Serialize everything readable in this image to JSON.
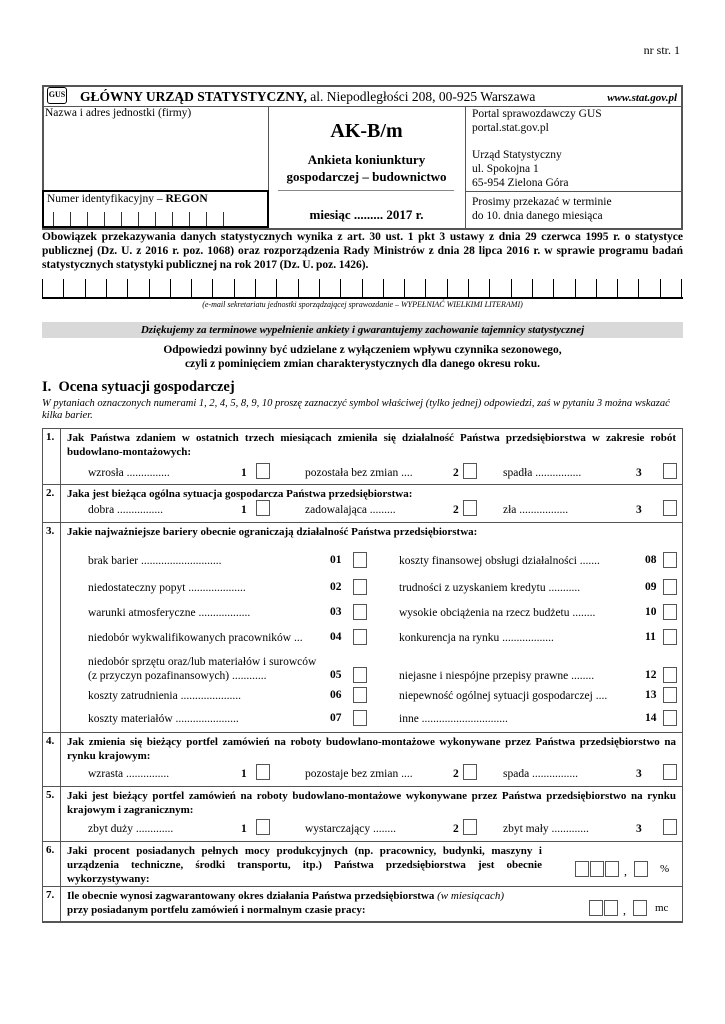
{
  "page_number": "nr str. 1",
  "header": {
    "logo_text": "GUS",
    "org_name": "GŁÓWNY URZĄD STATYSTYCZNY,",
    "address": " al. Niepodległości 208, 00-925 Warszawa",
    "website": "www.stat.gov.pl"
  },
  "unit_label": "Nazwa i adres jednostki (firmy)",
  "regon_label": "Numer identyfikacyjny – ",
  "regon_bold": "REGON",
  "form_code": "AK-B/m",
  "form_title_1": "Ankieta koniunktury",
  "form_title_2": "gospodarczej – budownictwo",
  "month_label": "miesiąc ......... ",
  "year": "2017 r.",
  "portal": [
    "Portal sprawozdawczy GUS",
    "portal.stat.gov.pl"
  ],
  "office": [
    "Urząd Statystyczny",
    "ul. Spokojna 1",
    "65-954 Zielona Góra"
  ],
  "deadline": [
    "Prosimy przekazać w terminie",
    "do 10. dnia danego miesiąca"
  ],
  "legal_text": "Obowiązek przekazywania danych statystycznych wynika z art. 30 ust. 1 pkt 3 ustawy z dnia 29 czerwca 1995 r. o statystyce publicznej (Dz. U. z 2016 r. poz. 1068) oraz rozporządzenia Rady Ministrów z dnia 28 lipca 2016 r. w sprawie programu badań statystycznych statystyki publicznej na rok 2017 (Dz. U. poz. 1426).",
  "email_caption": "(e-mail sekretariatu jednostki sporządzającej sprawozdanie – WYPEŁNIAĆ WIELKIMI LITERAMI)",
  "thanks": "Dziękujemy za terminowe wypełnienie ankiety i gwarantujemy zachowanie tajemnicy statystycznej",
  "note_1": "Odpowiedzi powinny być udzielane z wyłączeniem wpływu czynnika sezonowego,",
  "note_2": "czyli z pominięciem zmian charakterystycznych dla danego okresu roku.",
  "section_title": "I.  Ocena sytuacji gospodarczej",
  "instruction": "W pytaniach oznaczonych numerami 1, 2, 4, 5, 8, 9, 10 proszę zaznaczyć symbol właściwej (tylko jednej) odpowiedzi, zaś w pytaniu 3 można wskazać kilka barier.",
  "questions": [
    {
      "num": "1.",
      "text": "Jak Państwa zdaniem w ostatnich trzech miesiącach zmieniła się działalność Państwa przedsiębiorstwa w zakresie robót budowlano-montażowych:",
      "options": [
        {
          "label": "wzrosła ...............",
          "code": "1"
        },
        {
          "label": "pozostała bez zmian ....",
          "code": "2"
        },
        {
          "label": "spadła ................",
          "code": "3"
        }
      ]
    },
    {
      "num": "2.",
      "text": "Jaka jest bieżąca ogólna sytuacja gospodarcza Państwa przedsiębiorstwa:",
      "options": [
        {
          "label": "dobra ................",
          "code": "1"
        },
        {
          "label": "zadowalająca .........",
          "code": "2"
        },
        {
          "label": "zła .................",
          "code": "3"
        }
      ]
    },
    {
      "num": "3.",
      "text": "Jakie najważniejsze bariery obecnie ograniczają działalność Państwa przedsiębiorstwa:",
      "barriers_left": [
        {
          "label": "brak barier ............................",
          "code": "01"
        },
        {
          "label": "niedostateczny popyt ....................",
          "code": "02"
        },
        {
          "label": "warunki atmosferyczne ..................",
          "code": "03"
        },
        {
          "label": "niedobór wykwalifikowanych pracowników ...",
          "code": "04"
        },
        {
          "label": "niedobór sprzętu oraz/lub materiałów i surowców\n(z przyczyn pozafinansowych) ............",
          "code": "05"
        },
        {
          "label": "koszty zatrudnienia .....................",
          "code": "06"
        },
        {
          "label": "koszty materiałów ......................",
          "code": "07"
        }
      ],
      "barriers_right": [
        {
          "label": "koszty finansowej obsługi działalności .......",
          "code": "08"
        },
        {
          "label": "trudności z uzyskaniem kredytu ...........",
          "code": "09"
        },
        {
          "label": "wysokie obciążenia na rzecz budżetu ........",
          "code": "10"
        },
        {
          "label": "konkurencja na rynku ..................",
          "code": "11"
        },
        {
          "label": "niejasne i niespójne przepisy prawne ........",
          "code": "12"
        },
        {
          "label": "niepewność ogólnej sytuacji gospodarczej ....",
          "code": "13"
        },
        {
          "label": "inne ..............................",
          "code": "14"
        }
      ]
    },
    {
      "num": "4.",
      "text": "Jak zmienia się bieżący portfel zamówień na roboty budowlano-montażowe wykonywane przez Państwa przedsiębiorstwo na rynku krajowym:",
      "options": [
        {
          "label": "wzrasta ...............",
          "code": "1"
        },
        {
          "label": "pozostaje bez zmian ....",
          "code": "2"
        },
        {
          "label": "spada ................",
          "code": "3"
        }
      ]
    },
    {
      "num": "5.",
      "text": "Jaki jest bieżący portfel zamówień na roboty budowlano-montażowe wykonywane przez Państwa przedsiębiorstwo na rynku krajowym i zagranicznym:",
      "options": [
        {
          "label": "zbyt duży .............",
          "code": "1"
        },
        {
          "label": "wystarczający ........",
          "code": "2"
        },
        {
          "label": "zbyt mały .............",
          "code": "3"
        }
      ]
    },
    {
      "num": "6.",
      "text": "Jaki procent posiadanych pełnych mocy produkcyjnych (np. pracownicy, budynki, maszyny i urządzenia techniczne, środki transportu, itp.) Państwa przedsiębiorstwa jest obecnie wykorzystywany:",
      "unit": "%",
      "separator": ","
    },
    {
      "num": "7.",
      "text": "Ile obecnie wynosi zagwarantowany okres działania Państwa przedsiębiorstwa ",
      "text_italic": "(w miesiącach)",
      "text_2": "przy posiadanym portfelu zamówień i normalnym czasie pracy:",
      "unit": "mc",
      "separator": ","
    }
  ]
}
